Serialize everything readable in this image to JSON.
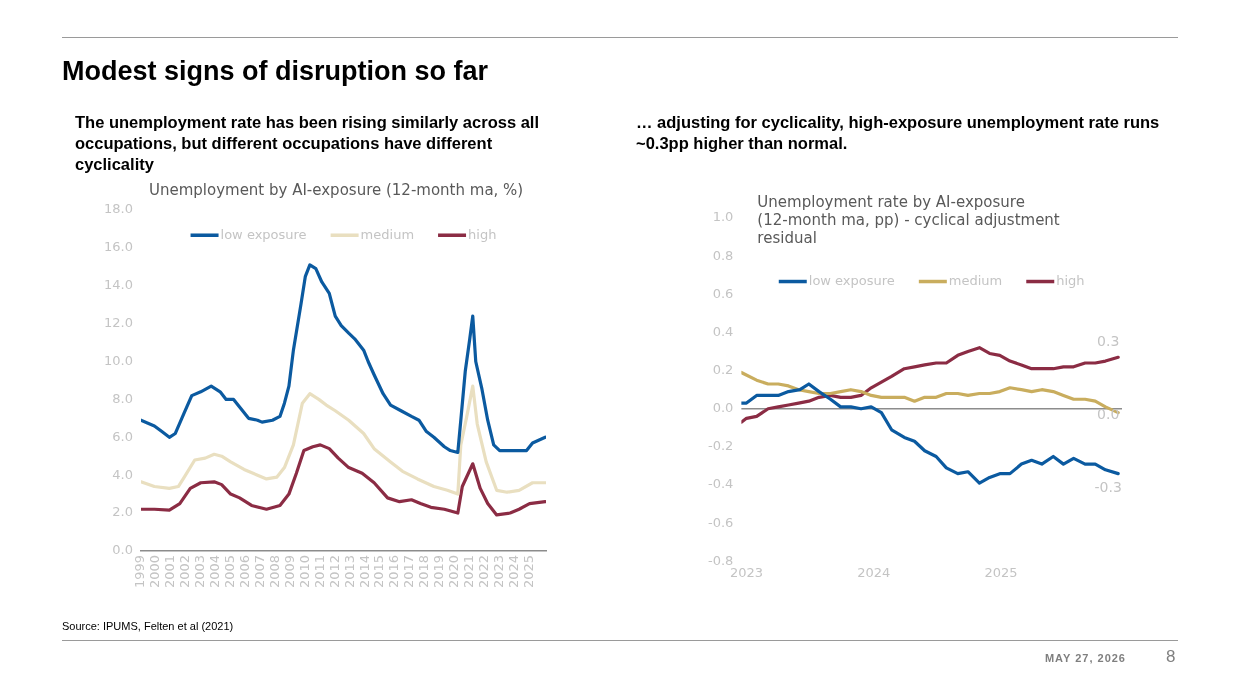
{
  "chart_data": [
    {
      "type": "line",
      "title": "Unemployment by AI-exposure (12-month ma, %)",
      "subtitle": "The unemployment rate has been rising similarly across all occupations, but different occupations have different cyclicality",
      "annotations": [
        "Modest signs of disruption so far",
        "Source: IPUMS, Felten et al (2021)"
      ],
      "xlim": [
        1999,
        2026.1
      ],
      "xticks": [
        1999,
        2000,
        2001,
        2002,
        2003,
        2004,
        2005,
        2006,
        2007,
        2008,
        2009,
        2010,
        2011,
        2012,
        2013,
        2014,
        2015,
        2016,
        2017,
        2018,
        2019,
        2020,
        2021,
        2022,
        2023,
        2024,
        2025
      ],
      "ylim": [
        0,
        18
      ],
      "yticks": [
        {
          "value": 0,
          "label": "0.0"
        },
        {
          "value": 2,
          "label": "2.0"
        },
        {
          "value": 4,
          "label": "4.0"
        },
        {
          "value": 6,
          "label": "6.0"
        },
        {
          "value": 8,
          "label": "8.0"
        },
        {
          "value": 10,
          "label": "10.0"
        },
        {
          "value": 12,
          "label": "12.0"
        },
        {
          "value": 14,
          "label": "14.0"
        },
        {
          "value": 16,
          "label": "16.0"
        },
        {
          "value": 18,
          "label": "18.0"
        }
      ],
      "grid": false,
      "legend": "top",
      "marker": "none",
      "line_style": "solid",
      "series": [
        {
          "name": "low exposure",
          "color": "#0b5aa0",
          "x": [
            1999.0,
            1999.9,
            2000.4,
            2000.9,
            2001.3,
            2001.9,
            2002.4,
            2003.0,
            2003.7,
            2004.3,
            2004.7,
            2005.2,
            2005.6,
            2006.2,
            2006.8,
            2007.1,
            2007.8,
            2008.3,
            2008.6,
            2008.9,
            2009.2,
            2009.7,
            2010.0,
            2010.3,
            2010.7,
            2011.1,
            2011.6,
            2012.0,
            2012.4,
            2012.9,
            2013.3,
            2013.9,
            2014.2,
            2014.6,
            2015.2,
            2015.7,
            2016.4,
            2017.1,
            2017.6,
            2018.1,
            2018.6,
            2019.3,
            2019.7,
            2020.2,
            2020.4,
            2020.7,
            2021.0,
            2021.2,
            2021.4,
            2021.8,
            2022.2,
            2022.6,
            2023.0,
            2023.9,
            2024.8,
            2025.2,
            2026.05
          ],
          "values": [
            6.9,
            6.6,
            6.3,
            6.0,
            6.2,
            7.3,
            8.2,
            8.4,
            8.7,
            8.4,
            8.0,
            8.0,
            7.6,
            7.0,
            6.9,
            6.8,
            6.9,
            7.1,
            7.8,
            8.7,
            10.6,
            13.0,
            14.5,
            15.1,
            14.9,
            14.2,
            13.6,
            12.4,
            11.9,
            11.5,
            11.2,
            10.6,
            10.0,
            9.3,
            8.3,
            7.7,
            7.4,
            7.1,
            6.9,
            6.3,
            6.0,
            5.5,
            5.3,
            5.2,
            6.9,
            9.5,
            11.2,
            12.4,
            10.0,
            8.6,
            6.9,
            5.6,
            5.3,
            5.3,
            5.3,
            5.7,
            6.0
          ]
        },
        {
          "name": "medium",
          "color": "#e9dfc0",
          "x": [
            1999.0,
            1999.9,
            2000.9,
            2001.5,
            2001.9,
            2002.6,
            2003.3,
            2003.9,
            2004.4,
            2005.0,
            2005.9,
            2006.5,
            2007.4,
            2008.1,
            2008.6,
            2009.2,
            2009.8,
            2010.3,
            2010.9,
            2011.4,
            2012.0,
            2012.9,
            2013.9,
            2014.6,
            2015.7,
            2016.5,
            2017.5,
            2018.6,
            2019.5,
            2020.2,
            2020.4,
            2020.8,
            2021.2,
            2021.5,
            2022.1,
            2022.8,
            2023.5,
            2024.3,
            2025.2,
            2026.05
          ],
          "values": [
            3.65,
            3.4,
            3.3,
            3.4,
            3.9,
            4.8,
            4.9,
            5.1,
            5.0,
            4.7,
            4.3,
            4.1,
            3.8,
            3.9,
            4.4,
            5.6,
            7.8,
            8.3,
            8.0,
            7.7,
            7.4,
            6.9,
            6.2,
            5.4,
            4.7,
            4.2,
            3.8,
            3.4,
            3.2,
            3.0,
            5.6,
            7.1,
            8.7,
            6.7,
            4.7,
            3.2,
            3.1,
            3.2,
            3.6,
            3.6
          ]
        },
        {
          "name": "high",
          "color": "#8b2c44",
          "x": [
            1999.0,
            1999.9,
            2000.9,
            2001.6,
            2002.3,
            2003.0,
            2003.9,
            2004.4,
            2005.0,
            2005.6,
            2006.4,
            2007.4,
            2008.3,
            2008.9,
            2009.4,
            2009.9,
            2010.5,
            2011.0,
            2011.6,
            2012.2,
            2012.9,
            2013.8,
            2014.6,
            2015.5,
            2016.3,
            2017.1,
            2017.7,
            2018.4,
            2019.3,
            2020.2,
            2020.5,
            2021.2,
            2021.7,
            2022.2,
            2022.8,
            2023.7,
            2024.3,
            2025.0,
            2026.05
          ],
          "values": [
            2.2,
            2.2,
            2.15,
            2.5,
            3.3,
            3.6,
            3.65,
            3.5,
            3.0,
            2.8,
            2.4,
            2.2,
            2.4,
            3.0,
            4.1,
            5.3,
            5.5,
            5.6,
            5.4,
            4.9,
            4.4,
            4.1,
            3.6,
            2.8,
            2.6,
            2.7,
            2.5,
            2.3,
            2.2,
            2.0,
            3.4,
            4.6,
            3.3,
            2.5,
            1.9,
            2.0,
            2.2,
            2.5,
            2.6
          ]
        }
      ]
    },
    {
      "type": "line",
      "title": "Unemployment rate by AI-exposure (12-month ma, pp) - cyclical adjustment residual",
      "subtitle": "… adjusting for cyclicality, high-exposure unemployment rate runs ~0.3pp higher than normal.",
      "annotations": [
        "MAY 27, 2026",
        "8"
      ],
      "xlim": [
        2022.96,
        2025.95
      ],
      "xticks": [
        2023,
        2024,
        2025
      ],
      "ylim": [
        -0.8,
        1.0
      ],
      "yticks": [
        {
          "value": -0.8,
          "label": "-0.8"
        },
        {
          "value": -0.6,
          "label": "-0.6"
        },
        {
          "value": -0.4,
          "label": "-0.4"
        },
        {
          "value": -0.2,
          "label": "-0.2"
        },
        {
          "value": 0,
          "label": "0.0"
        },
        {
          "value": 0.2,
          "label": "0.2"
        },
        {
          "value": 0.4,
          "label": "0.4"
        },
        {
          "value": 0.6,
          "label": "0.6"
        },
        {
          "value": 0.8,
          "label": "0.8"
        },
        {
          "value": 1.0,
          "label": "1.0"
        }
      ],
      "grid": false,
      "legend": "top",
      "marker": "none",
      "line_style": "solid",
      "ref_lines": [
        {
          "axis": "y",
          "value": 0,
          "color": "#8c8c8c"
        }
      ],
      "series": [
        {
          "name": "low exposure",
          "color": "#0b5aa0",
          "x": [
            2022.96,
            2023.0,
            2023.08,
            2023.17,
            2023.25,
            2023.33,
            2023.42,
            2023.49,
            2023.57,
            2023.66,
            2023.74,
            2023.82,
            2023.9,
            2023.98,
            2024.06,
            2024.14,
            2024.24,
            2024.32,
            2024.4,
            2024.49,
            2024.57,
            2024.66,
            2024.74,
            2024.83,
            2024.91,
            2024.99,
            2025.07,
            2025.16,
            2025.24,
            2025.32,
            2025.41,
            2025.49,
            2025.57,
            2025.66,
            2025.74,
            2025.82,
            2025.92
          ],
          "values": [
            0.03,
            0.03,
            0.07,
            0.07,
            0.07,
            0.09,
            0.1,
            0.13,
            0.09,
            0.05,
            0.01,
            0.01,
            0.0,
            0.01,
            -0.02,
            -0.11,
            -0.15,
            -0.17,
            -0.22,
            -0.25,
            -0.31,
            -0.34,
            -0.33,
            -0.39,
            -0.36,
            -0.34,
            -0.34,
            -0.29,
            -0.27,
            -0.29,
            -0.25,
            -0.29,
            -0.26,
            -0.29,
            -0.29,
            -0.32,
            -0.34
          ],
          "value_labels": [
            null,
            null,
            null,
            null,
            null,
            null,
            null,
            null,
            null,
            null,
            null,
            null,
            null,
            null,
            null,
            null,
            null,
            null,
            null,
            null,
            null,
            null,
            null,
            null,
            null,
            null,
            null,
            null,
            null,
            null,
            null,
            null,
            null,
            null,
            null,
            null,
            "-0.3"
          ]
        },
        {
          "name": "medium",
          "color": "#c9ad5e",
          "x": [
            2022.96,
            2023.08,
            2023.17,
            2023.25,
            2023.33,
            2023.41,
            2023.49,
            2023.57,
            2023.66,
            2023.74,
            2023.82,
            2023.9,
            2023.98,
            2024.06,
            2024.14,
            2024.24,
            2024.32,
            2024.4,
            2024.49,
            2024.57,
            2024.66,
            2024.74,
            2024.83,
            2024.91,
            2024.99,
            2025.07,
            2025.16,
            2025.24,
            2025.32,
            2025.41,
            2025.49,
            2025.57,
            2025.66,
            2025.74,
            2025.82,
            2025.92
          ],
          "values": [
            0.19,
            0.15,
            0.13,
            0.13,
            0.12,
            0.1,
            0.09,
            0.08,
            0.08,
            0.09,
            0.1,
            0.09,
            0.07,
            0.06,
            0.06,
            0.06,
            0.04,
            0.06,
            0.06,
            0.08,
            0.08,
            0.07,
            0.08,
            0.08,
            0.09,
            0.11,
            0.1,
            0.09,
            0.1,
            0.09,
            0.07,
            0.05,
            0.05,
            0.04,
            0.01,
            -0.02
          ],
          "value_labels": [
            null,
            null,
            null,
            null,
            null,
            null,
            null,
            null,
            null,
            null,
            null,
            null,
            null,
            null,
            null,
            null,
            null,
            null,
            null,
            null,
            null,
            null,
            null,
            null,
            null,
            null,
            null,
            null,
            null,
            null,
            null,
            null,
            null,
            null,
            null,
            "0.0"
          ]
        },
        {
          "name": "high",
          "color": "#8b2c44",
          "x": [
            2022.96,
            2023.0,
            2023.08,
            2023.17,
            2023.25,
            2023.33,
            2023.41,
            2023.49,
            2023.57,
            2023.66,
            2023.74,
            2023.82,
            2023.9,
            2023.98,
            2024.06,
            2024.14,
            2024.24,
            2024.32,
            2024.4,
            2024.49,
            2024.57,
            2024.66,
            2024.74,
            2024.83,
            2024.91,
            2024.99,
            2025.07,
            2025.16,
            2025.24,
            2025.32,
            2025.41,
            2025.49,
            2025.57,
            2025.66,
            2025.74,
            2025.82,
            2025.92
          ],
          "values": [
            -0.07,
            -0.05,
            -0.04,
            0.0,
            0.01,
            0.02,
            0.03,
            0.04,
            0.06,
            0.07,
            0.06,
            0.06,
            0.07,
            0.11,
            0.14,
            0.17,
            0.21,
            0.22,
            0.23,
            0.24,
            0.24,
            0.28,
            0.3,
            0.32,
            0.29,
            0.28,
            0.25,
            0.23,
            0.21,
            0.21,
            0.21,
            0.22,
            0.22,
            0.24,
            0.24,
            0.25,
            0.27
          ],
          "value_labels": [
            null,
            null,
            null,
            null,
            null,
            null,
            null,
            null,
            null,
            null,
            null,
            null,
            null,
            null,
            null,
            null,
            null,
            null,
            null,
            null,
            null,
            null,
            null,
            null,
            null,
            null,
            null,
            null,
            null,
            null,
            null,
            null,
            null,
            null,
            null,
            null,
            "0.3"
          ]
        }
      ]
    }
  ]
}
